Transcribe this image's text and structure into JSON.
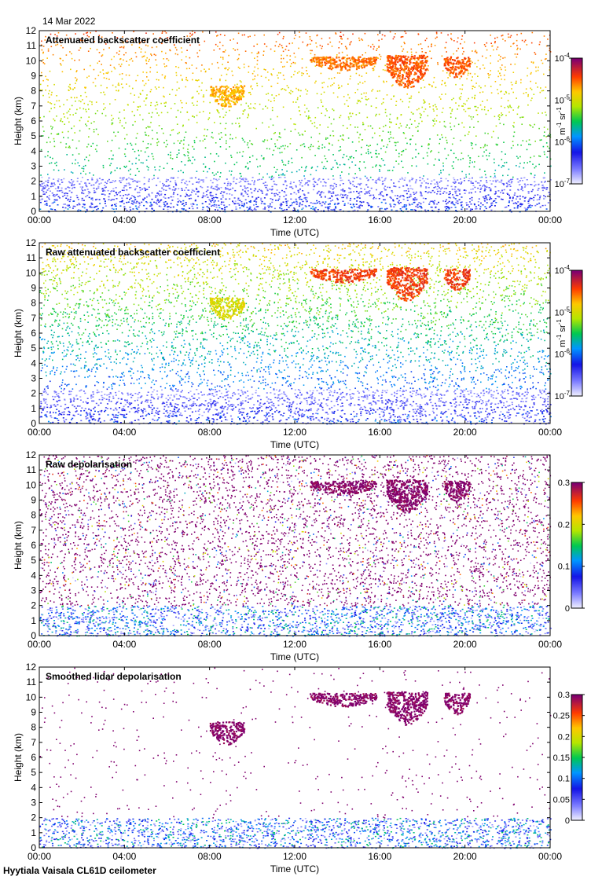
{
  "date": "14 Mar 2022",
  "footer": "Hyytiala Vaisala CL61D ceilometer",
  "chart_data": [
    {
      "type": "heatmap",
      "title": "Attenuated backscatter coefficient",
      "xlabel": "Time (UTC)",
      "ylabel": "Height (km)",
      "x_ticks": [
        "00:00",
        "04:00",
        "08:00",
        "12:00",
        "16:00",
        "20:00",
        "00:00"
      ],
      "y_ticks": [
        "0",
        "1",
        "2",
        "3",
        "4",
        "5",
        "6",
        "7",
        "8",
        "9",
        "10",
        "11",
        "12"
      ],
      "ylim": [
        0,
        12
      ],
      "xlim_hours": [
        0,
        24
      ],
      "colorbar": {
        "scale": "log",
        "range": [
          1e-07,
          0.0001
        ],
        "tick_bases": [
          "10",
          "10",
          "10",
          "10"
        ],
        "tick_exponents": [
          "-7",
          "-6",
          "-5",
          "-4"
        ],
        "unit_base": "m",
        "unit_exp1": "-1",
        "unit_mid": " sr",
        "unit_exp2": "-1"
      },
      "features": {
        "noise_level": 0.25,
        "boundary_layer_top_km": 2.3,
        "background": "sparse",
        "clouds": [
          {
            "t_start_h": 8.0,
            "t_end_h": 9.6,
            "h_top_km": 8.4,
            "h_bottom_km": 6.9,
            "color": "orange"
          },
          {
            "t_start_h": 12.7,
            "t_end_h": 15.8,
            "h_top_km": 10.3,
            "h_bottom_km": 9.4,
            "color": "orange-red"
          },
          {
            "t_start_h": 16.3,
            "t_end_h": 18.2,
            "h_top_km": 10.4,
            "h_bottom_km": 8.2,
            "color": "red-orange"
          },
          {
            "t_start_h": 19.0,
            "t_end_h": 20.2,
            "h_top_km": 10.3,
            "h_bottom_km": 8.9,
            "color": "red-orange"
          }
        ]
      }
    },
    {
      "type": "heatmap",
      "title": "Raw attenuated backscatter coefficient",
      "xlabel": "Time (UTC)",
      "ylabel": "Height (km)",
      "x_ticks": [
        "00:00",
        "04:00",
        "08:00",
        "12:00",
        "16:00",
        "20:00",
        "00:00"
      ],
      "y_ticks": [
        "0",
        "1",
        "2",
        "3",
        "4",
        "5",
        "6",
        "7",
        "8",
        "9",
        "10",
        "11",
        "12"
      ],
      "ylim": [
        0,
        12
      ],
      "xlim_hours": [
        0,
        24
      ],
      "colorbar": {
        "scale": "log",
        "range": [
          1e-07,
          0.0001
        ],
        "tick_bases": [
          "10",
          "10",
          "10",
          "10"
        ],
        "tick_exponents": [
          "-7",
          "-6",
          "-5",
          "-4"
        ],
        "unit_base": "m",
        "unit_exp1": "-1",
        "unit_mid": " sr",
        "unit_exp2": "-1"
      },
      "features": {
        "noise_level": 0.45,
        "boundary_layer_top_km": 2.3,
        "background": "dense-gradient",
        "clouds": [
          {
            "t_start_h": 8.0,
            "t_end_h": 9.6,
            "h_top_km": 8.4,
            "h_bottom_km": 6.9,
            "color": "yellow"
          },
          {
            "t_start_h": 12.7,
            "t_end_h": 15.8,
            "h_top_km": 10.3,
            "h_bottom_km": 9.4,
            "color": "red"
          },
          {
            "t_start_h": 16.3,
            "t_end_h": 18.2,
            "h_top_km": 10.4,
            "h_bottom_km": 8.2,
            "color": "red"
          },
          {
            "t_start_h": 19.0,
            "t_end_h": 20.2,
            "h_top_km": 10.3,
            "h_bottom_km": 8.9,
            "color": "red"
          }
        ]
      }
    },
    {
      "type": "heatmap",
      "title": "Raw depolarisation",
      "xlabel": "Time (UTC)",
      "ylabel": "Height (km)",
      "x_ticks": [
        "00:00",
        "04:00",
        "08:00",
        "12:00",
        "16:00",
        "20:00",
        "00:00"
      ],
      "y_ticks": [
        "0",
        "1",
        "2",
        "3",
        "4",
        "5",
        "6",
        "7",
        "8",
        "9",
        "10",
        "11",
        "12"
      ],
      "ylim": [
        0,
        12
      ],
      "xlim_hours": [
        0,
        24
      ],
      "colorbar": {
        "scale": "linear",
        "range": [
          0,
          0.3
        ],
        "ticks": [
          "0",
          "0.1",
          "0.2",
          "0.3"
        ]
      },
      "features": {
        "noise_level": 0.55,
        "boundary_layer_top_km": 2.0,
        "background": "purple-noise",
        "clouds": [
          {
            "t_start_h": 12.7,
            "t_end_h": 15.8,
            "h_top_km": 10.3,
            "h_bottom_km": 9.4,
            "color": "purple"
          },
          {
            "t_start_h": 16.3,
            "t_end_h": 18.2,
            "h_top_km": 10.4,
            "h_bottom_km": 8.2,
            "color": "purple"
          },
          {
            "t_start_h": 19.0,
            "t_end_h": 20.2,
            "h_top_km": 10.3,
            "h_bottom_km": 8.9,
            "color": "purple"
          }
        ]
      }
    },
    {
      "type": "heatmap",
      "title": "Smoothed lidar depolarisation",
      "xlabel": "Time (UTC)",
      "ylabel": "Height (km)",
      "x_ticks": [
        "00:00",
        "04:00",
        "08:00",
        "12:00",
        "16:00",
        "20:00",
        "00:00"
      ],
      "y_ticks": [
        "0",
        "1",
        "2",
        "3",
        "4",
        "5",
        "6",
        "7",
        "8",
        "9",
        "10",
        "11",
        "12"
      ],
      "ylim": [
        0,
        12
      ],
      "xlim_hours": [
        0,
        24
      ],
      "colorbar": {
        "scale": "linear",
        "range": [
          0,
          0.3
        ],
        "ticks": [
          "0",
          "0.05",
          "0.1",
          "0.15",
          "0.2",
          "0.25",
          "0.3"
        ]
      },
      "features": {
        "noise_level": 0.05,
        "boundary_layer_top_km": 2.0,
        "background": "sparse-purple",
        "clouds": [
          {
            "t_start_h": 8.0,
            "t_end_h": 9.6,
            "h_top_km": 8.4,
            "h_bottom_km": 6.9,
            "color": "purple"
          },
          {
            "t_start_h": 12.7,
            "t_end_h": 15.8,
            "h_top_km": 10.3,
            "h_bottom_km": 9.4,
            "color": "purple"
          },
          {
            "t_start_h": 16.3,
            "t_end_h": 18.2,
            "h_top_km": 10.4,
            "h_bottom_km": 8.2,
            "color": "purple"
          },
          {
            "t_start_h": 19.0,
            "t_end_h": 20.2,
            "h_top_km": 10.3,
            "h_bottom_km": 8.9,
            "color": "purple"
          }
        ]
      }
    }
  ]
}
